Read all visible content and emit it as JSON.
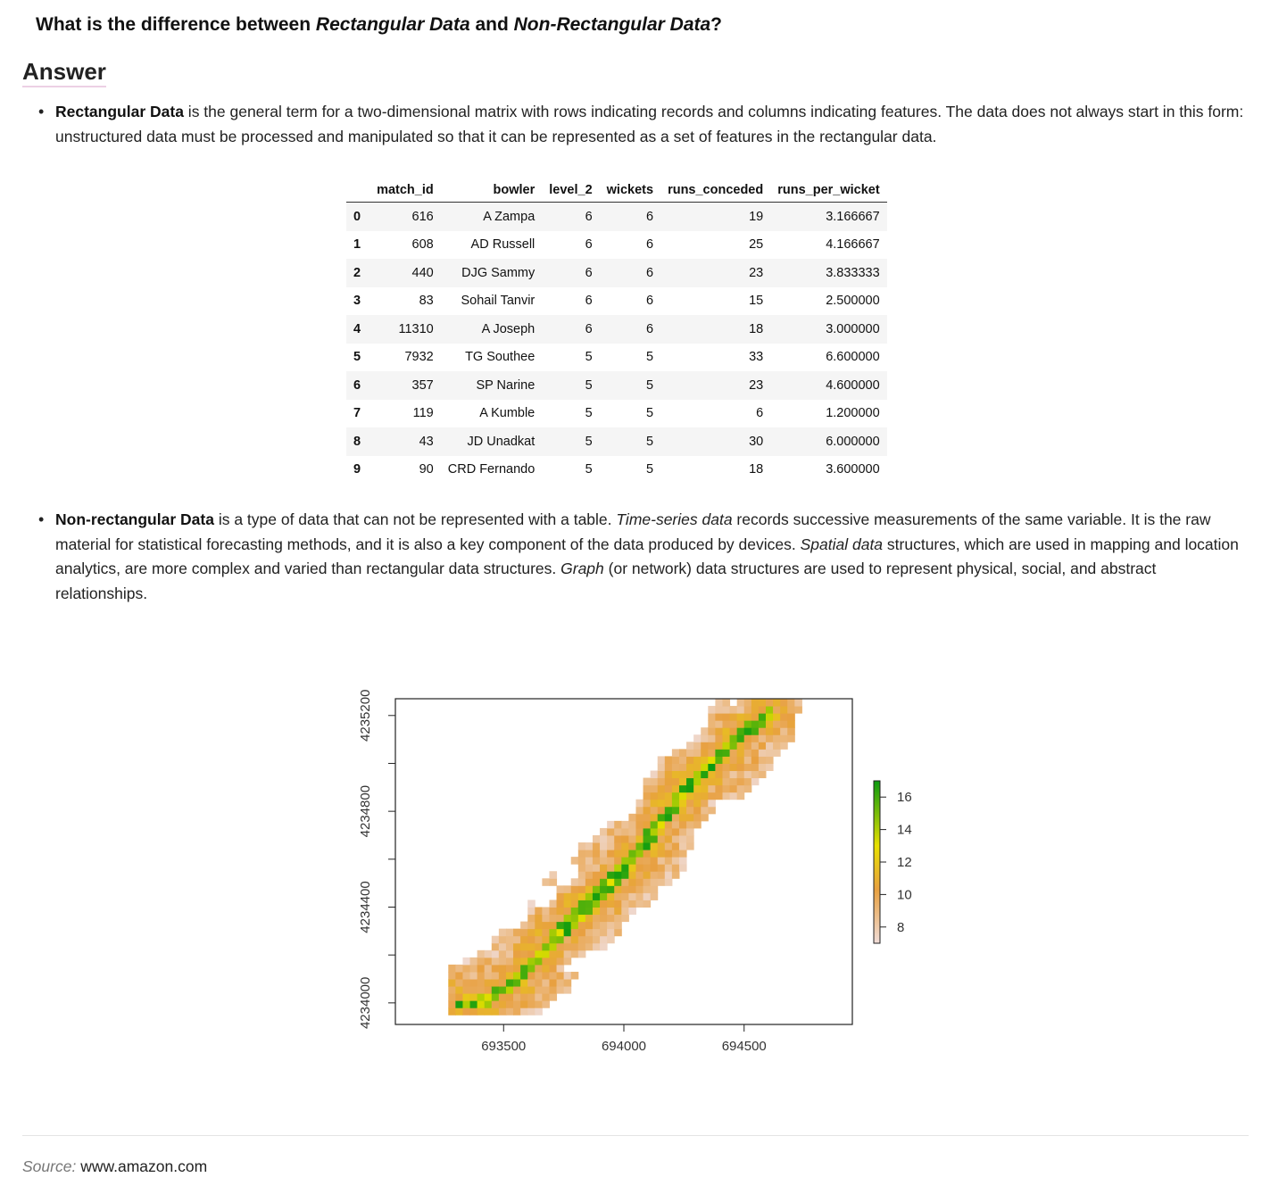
{
  "question": {
    "prefix": "What is the difference between ",
    "term1": "Rectangular Data",
    "mid": " and ",
    "term2": "Non-Rectangular Data",
    "suffix": "?"
  },
  "answer_heading": "Answer",
  "bullet1": {
    "bold": "Rectangular Data",
    "text": " is the general term for a two-dimensional matrix with rows indicating records and columns indicating features. The data does not always start in this form: unstructured data must be processed and manipulated so that it can be represented as a set of features in the rectangular data."
  },
  "table": {
    "columns": [
      "match_id",
      "bowler",
      "level_2",
      "wickets",
      "runs_conceded",
      "runs_per_wicket"
    ],
    "rows": [
      [
        "0",
        "616",
        "A Zampa",
        "6",
        "6",
        "19",
        "3.166667"
      ],
      [
        "1",
        "608",
        "AD Russell",
        "6",
        "6",
        "25",
        "4.166667"
      ],
      [
        "2",
        "440",
        "DJG Sammy",
        "6",
        "6",
        "23",
        "3.833333"
      ],
      [
        "3",
        "83",
        "Sohail Tanvir",
        "6",
        "6",
        "15",
        "2.500000"
      ],
      [
        "4",
        "11310",
        "A Joseph",
        "6",
        "6",
        "18",
        "3.000000"
      ],
      [
        "5",
        "7932",
        "TG Southee",
        "5",
        "5",
        "33",
        "6.600000"
      ],
      [
        "6",
        "357",
        "SP Narine",
        "5",
        "5",
        "23",
        "4.600000"
      ],
      [
        "7",
        "119",
        "A Kumble",
        "5",
        "5",
        "6",
        "1.200000"
      ],
      [
        "8",
        "43",
        "JD Unadkat",
        "5",
        "5",
        "30",
        "6.000000"
      ],
      [
        "9",
        "90",
        "CRD Fernando",
        "5",
        "5",
        "18",
        "3.600000"
      ]
    ]
  },
  "bullet2": {
    "bold": "Non-rectangular Data",
    "t1": " is a type of data that can not be represented with a table. ",
    "i1": "Time-series data",
    "t2": " records successive measurements of the same variable. It is the raw material for statistical forecasting methods, and it is also a key component of the data produced by devices. ",
    "i2": "Spatial data",
    "t3": " structures, which are used in mapping and location analytics, are more complex and varied than rectangular data structures. ",
    "i3": "Graph",
    "t4": " (or network) data structures are used to represent physical, social, and abstract relationships."
  },
  "chart_data": {
    "type": "heatmap",
    "x_ticks": [
      "693500",
      "694000",
      "694500"
    ],
    "y_ticks": [
      "4234000",
      "4234400",
      "4234800",
      "4235200"
    ],
    "xlim": [
      693050,
      694950
    ],
    "ylim": [
      4233910,
      4235270
    ],
    "legend_ticks": [
      "16",
      "14",
      "12",
      "10",
      "8"
    ],
    "legend_range": [
      7,
      17
    ],
    "colors": {
      "high": "#0b9a10",
      "mid": "#e8e000",
      "low_mid": "#e8a040",
      "low": "#f0dcd8"
    },
    "ridge": [
      [
        693310,
        4233990
      ],
      [
        693420,
        4234010
      ],
      [
        693560,
        4234100
      ],
      [
        693700,
        4234260
      ],
      [
        693850,
        4234410
      ],
      [
        694000,
        4234560
      ],
      [
        694150,
        4234750
      ],
      [
        694300,
        4234950
      ],
      [
        694450,
        4235080
      ],
      [
        694600,
        4235210
      ]
    ],
    "legend_position": "right"
  },
  "source": {
    "label": "Source:",
    "value": "www.amazon.com"
  }
}
